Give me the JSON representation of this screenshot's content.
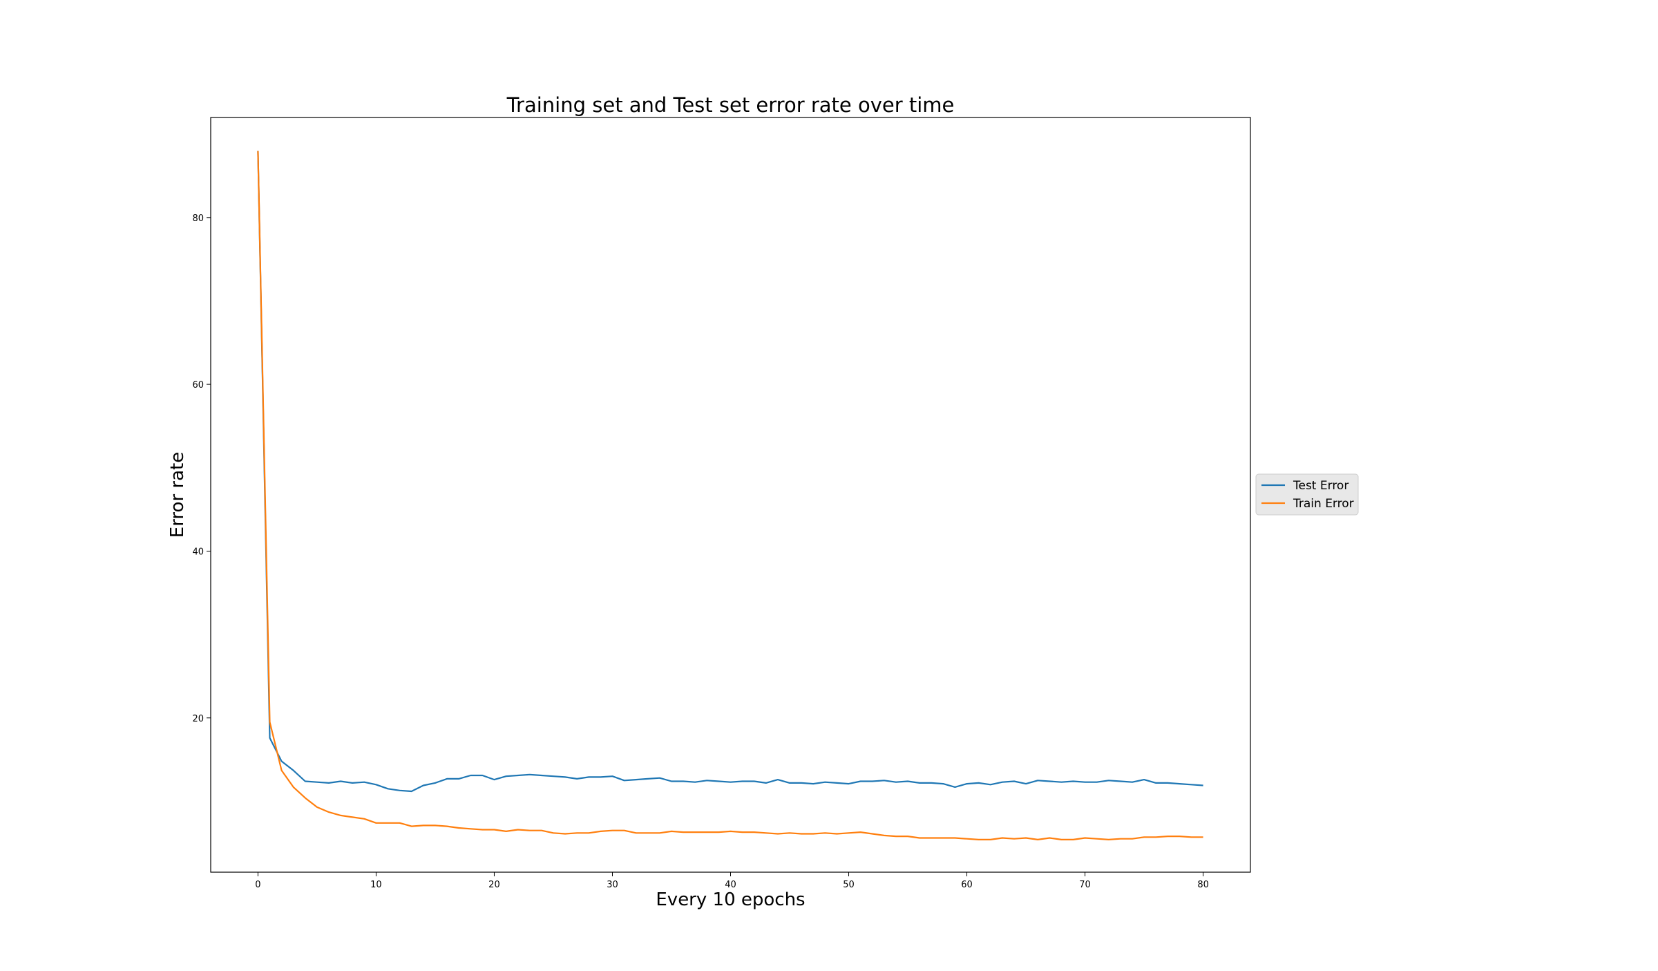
{
  "chart_data": {
    "type": "line",
    "title": "Training set and Test set error rate over time",
    "xlabel": "Every 10 epochs",
    "ylabel": "Error rate",
    "xlim": [
      -4,
      84
    ],
    "ylim": [
      1.5,
      92
    ],
    "xticks": [
      0,
      10,
      20,
      30,
      40,
      50,
      60,
      70,
      80
    ],
    "yticks": [
      20,
      40,
      60,
      80
    ],
    "grid": false,
    "legend_position": "center-right-outside",
    "x": [
      0,
      1,
      2,
      3,
      4,
      5,
      6,
      7,
      8,
      9,
      10,
      11,
      12,
      13,
      14,
      15,
      16,
      17,
      18,
      19,
      20,
      21,
      22,
      23,
      24,
      25,
      26,
      27,
      28,
      29,
      30,
      31,
      32,
      33,
      34,
      35,
      36,
      37,
      38,
      39,
      40,
      41,
      42,
      43,
      44,
      45,
      46,
      47,
      48,
      49,
      50,
      51,
      52,
      53,
      54,
      55,
      56,
      57,
      58,
      59,
      60,
      61,
      62,
      63,
      64,
      65,
      66,
      67,
      68,
      69,
      70,
      71,
      72,
      73,
      74,
      75,
      76,
      77,
      78,
      79,
      80
    ],
    "series": [
      {
        "name": "Test Error",
        "color": "#1f77b4",
        "values": [
          88.0,
          17.6,
          14.8,
          13.7,
          12.4,
          12.3,
          12.2,
          12.4,
          12.2,
          12.3,
          12.0,
          11.5,
          11.3,
          11.2,
          11.9,
          12.2,
          12.7,
          12.7,
          13.1,
          13.1,
          12.6,
          13.0,
          13.1,
          13.2,
          13.1,
          13.0,
          12.9,
          12.7,
          12.9,
          12.9,
          13.0,
          12.5,
          12.6,
          12.7,
          12.8,
          12.4,
          12.4,
          12.3,
          12.5,
          12.4,
          12.3,
          12.4,
          12.4,
          12.2,
          12.6,
          12.2,
          12.2,
          12.1,
          12.3,
          12.2,
          12.1,
          12.4,
          12.4,
          12.5,
          12.3,
          12.4,
          12.2,
          12.2,
          12.1,
          11.7,
          12.1,
          12.2,
          12.0,
          12.3,
          12.4,
          12.1,
          12.5,
          12.4,
          12.3,
          12.4,
          12.3,
          12.3,
          12.5,
          12.4,
          12.3,
          12.6,
          12.2,
          12.2,
          12.1,
          12.0,
          11.9
        ]
      },
      {
        "name": "Train Error",
        "color": "#ff7f0e",
        "values": [
          88.0,
          19.5,
          13.7,
          11.7,
          10.4,
          9.3,
          8.7,
          8.3,
          8.1,
          7.9,
          7.4,
          7.4,
          7.4,
          7.0,
          7.1,
          7.1,
          7.0,
          6.8,
          6.7,
          6.6,
          6.6,
          6.4,
          6.6,
          6.5,
          6.5,
          6.2,
          6.1,
          6.2,
          6.2,
          6.4,
          6.5,
          6.5,
          6.2,
          6.2,
          6.2,
          6.4,
          6.3,
          6.3,
          6.3,
          6.3,
          6.4,
          6.3,
          6.3,
          6.2,
          6.1,
          6.2,
          6.1,
          6.1,
          6.2,
          6.1,
          6.2,
          6.3,
          6.1,
          5.9,
          5.8,
          5.8,
          5.6,
          5.6,
          5.6,
          5.6,
          5.5,
          5.4,
          5.4,
          5.6,
          5.5,
          5.6,
          5.4,
          5.6,
          5.4,
          5.4,
          5.6,
          5.5,
          5.4,
          5.5,
          5.5,
          5.7,
          5.7,
          5.8,
          5.8,
          5.7,
          5.7
        ]
      }
    ]
  }
}
